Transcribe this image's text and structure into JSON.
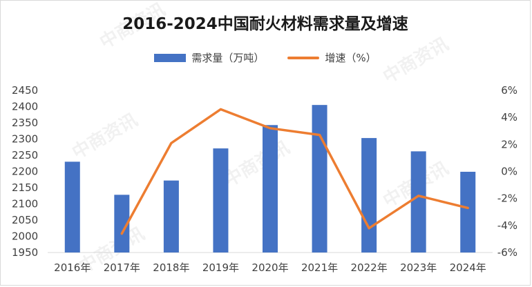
{
  "chart_data": {
    "type": "bar+line",
    "title": "2016-2024中国耐火材料需求量及增速",
    "categories": [
      "2016年",
      "2017年",
      "2018年",
      "2019年",
      "2020年",
      "2021年",
      "2022年",
      "2023年",
      "2024年"
    ],
    "series": [
      {
        "name": "需求量（万吨）",
        "type": "bar",
        "axis": "left",
        "color": "#4472c4",
        "values": [
          2230,
          2128,
          2172,
          2271,
          2343,
          2405,
          2303,
          2262,
          2199
        ]
      },
      {
        "name": "增速（%）",
        "type": "line",
        "axis": "right",
        "color": "#ed7d31",
        "values": [
          null,
          -4.6,
          2.1,
          4.6,
          3.2,
          2.7,
          -4.2,
          -1.8,
          -2.7
        ]
      }
    ],
    "y_left": {
      "ylim": [
        1950,
        2450
      ],
      "ticks": [
        "1950",
        "2000",
        "2050",
        "2100",
        "2150",
        "2200",
        "2250",
        "2300",
        "2350",
        "2400",
        "2450"
      ]
    },
    "y_right": {
      "ylim": [
        -6,
        6
      ],
      "ticks": [
        "-6%",
        "-4%",
        "-2%",
        "0%",
        "2%",
        "4%",
        "6%"
      ]
    },
    "grid": false,
    "legend_position": "top"
  },
  "watermark": {
    "text": "中商资讯",
    "icon": "p-logo-icon"
  }
}
